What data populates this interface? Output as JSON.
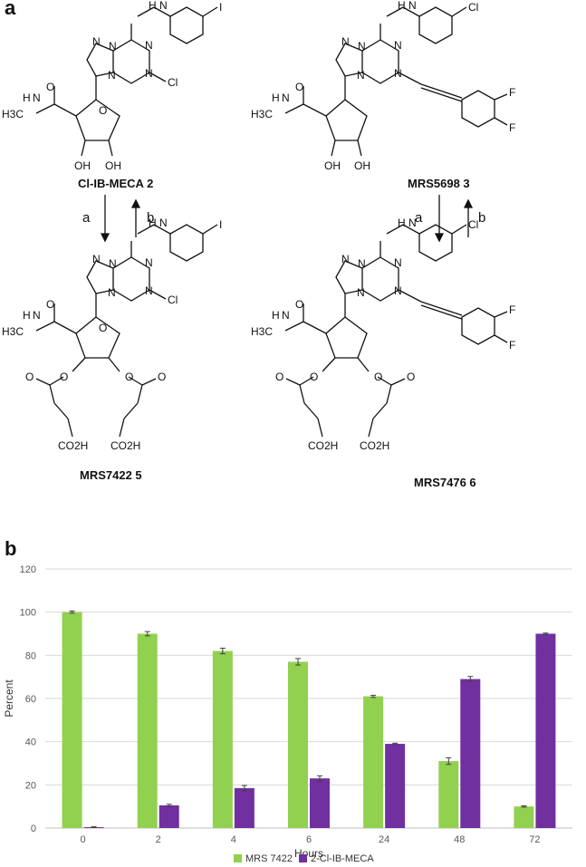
{
  "panel_a": {
    "letter": "a",
    "compounds": {
      "c2": "Cl-IB-MECA  2",
      "c3": "MRS5698  3",
      "c5": "MRS7422  5",
      "c6": "MRS7476  6"
    },
    "reagents": {
      "left_down": "a",
      "left_up": "b",
      "right_down": "a",
      "right_up": "b"
    },
    "atoms": {
      "iodo": "I",
      "chloro": "Cl",
      "fluoro": "F",
      "hydroxyl": "OH",
      "amine": "H",
      "nitrogen": "N",
      "oxygen": "O",
      "methyl": "H3C",
      "acid": "CO2H"
    }
  },
  "panel_b": {
    "letter": "b"
  },
  "chart_data": {
    "type": "bar",
    "categories": [
      "0",
      "2",
      "4",
      "6",
      "24",
      "48",
      "72"
    ],
    "xlabel": "Hours",
    "ylabel": "Percent",
    "ylim": [
      0,
      120
    ],
    "yticks": [
      "0",
      "20",
      "40",
      "60",
      "80",
      "100",
      "120"
    ],
    "grid": true,
    "legend_position": "bottom",
    "series": [
      {
        "name": "MRS 7422",
        "color": "#92D050",
        "values": [
          100,
          90,
          82,
          77,
          61,
          31,
          10
        ],
        "errors": [
          0.5,
          1,
          1.3,
          1.5,
          0.5,
          1.5,
          0.3
        ]
      },
      {
        "name": "2-Cl-IB-MECA",
        "color": "#7030A0",
        "values": [
          0.4,
          10.5,
          18.5,
          23,
          39,
          69,
          90
        ],
        "errors": [
          0.2,
          0.5,
          1.2,
          1.2,
          0.3,
          1.2,
          0.3
        ]
      }
    ]
  }
}
